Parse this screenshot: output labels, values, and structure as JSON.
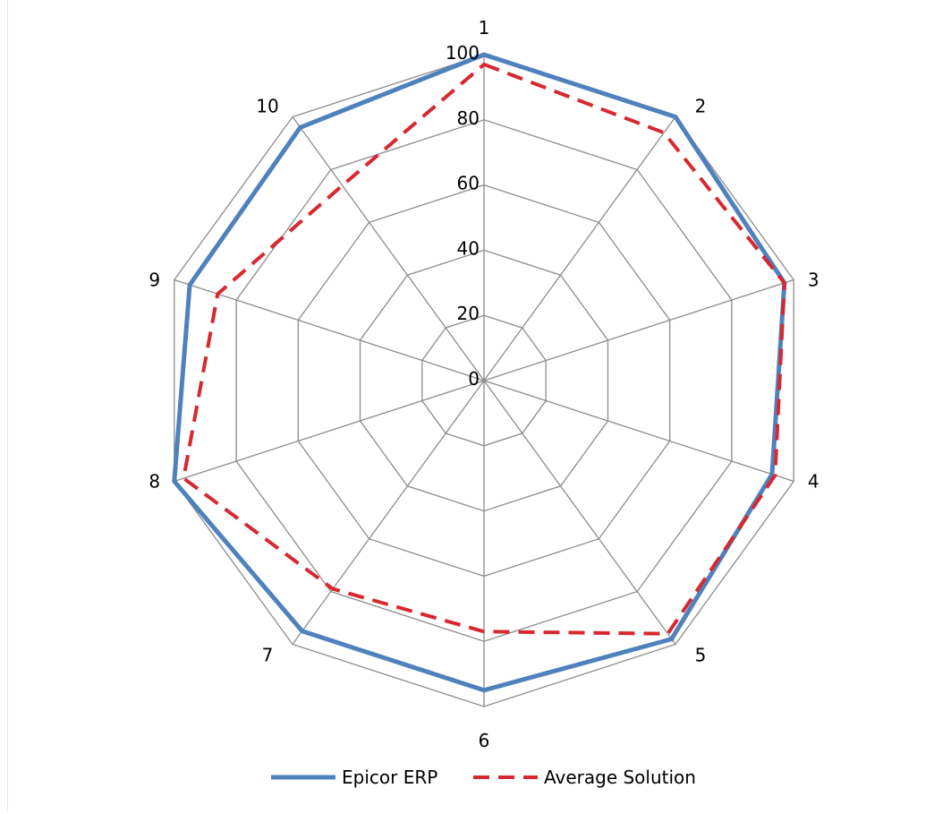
{
  "chart_data": {
    "type": "radar",
    "categories": [
      "1",
      "2",
      "3",
      "4",
      "5",
      "6",
      "7",
      "8",
      "9",
      "10"
    ],
    "radial_ticks": [
      "0",
      "20",
      "40",
      "60",
      "80",
      "100"
    ],
    "rlim": [
      0,
      100
    ],
    "grid": true,
    "legend_position": "bottom",
    "series": [
      {
        "name": "Epicor ERP",
        "values": [
          100,
          100,
          97,
          93,
          98,
          95,
          95,
          100,
          95,
          96
        ],
        "color": "#4f81bd",
        "style": "solid"
      },
      {
        "name": "Average Solution",
        "values": [
          97,
          94,
          97,
          94,
          96,
          77,
          79,
          97,
          86,
          74
        ],
        "color": "#d7282f",
        "style": "dashed"
      }
    ]
  }
}
